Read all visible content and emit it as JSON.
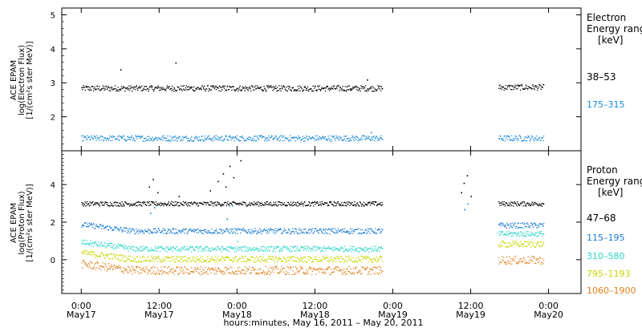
{
  "chart_data": [
    {
      "type": "scatter",
      "panel": "electron",
      "ylabel_lines": [
        "ACE EPAM",
        "log(Electron Flux)",
        "[1/(cm²s ster MeV)]"
      ],
      "ylim": [
        1,
        5.2
      ],
      "yticks": [
        2,
        3,
        4,
        5
      ],
      "yticklabels": [
        "2",
        "3",
        "4",
        "5"
      ],
      "legend_title": [
        "Electron",
        "Energy ranges",
        "[keV]"
      ],
      "data_gaps_hours": [
        [
          46.4,
          64.2
        ],
        [
          94.6,
          100.4
        ]
      ],
      "series": [
        {
          "name": "38–53",
          "color": "#000000",
          "base": 2.85,
          "trend": 0.03,
          "noise": 0.035,
          "points": [
            {
              "x": 6,
              "y": 3.4
            },
            {
              "x": 14.5,
              "y": 3.6
            },
            {
              "x": 44.0,
              "y": 3.1
            }
          ]
        },
        {
          "name": "175–315",
          "color": "#1a8ad6",
          "base": 1.38,
          "trend": 0.0,
          "noise": 0.035,
          "points": [
            {
              "x": 44.6,
              "y": 1.55
            }
          ]
        }
      ]
    },
    {
      "type": "scatter",
      "panel": "proton",
      "ylabel_lines": [
        "ACE EPAM",
        "log(Proton Flux)",
        "[1/(cm²s ster MeV)]"
      ],
      "ylim": [
        -1.8,
        5.8
      ],
      "yticks": [
        0,
        2,
        4
      ],
      "yticklabels": [
        "0",
        "2",
        "4"
      ],
      "legend_title": [
        "Proton",
        "Energy ranges",
        "[keV]"
      ],
      "x_tick_hours": [
        0,
        12,
        24,
        36,
        48,
        60,
        72
      ],
      "xticklabels": [
        "0:00",
        "12:00",
        "0:00",
        "12:00",
        "0:00",
        "12:00",
        "0:00"
      ],
      "date_labels": [
        "May17",
        "May17",
        "May18",
        "May18",
        "May19",
        "May19",
        "May20"
      ],
      "xlim_hours": [
        -3,
        77
      ],
      "xlabel": "hours:minutes, May 16, 2011 – May 20, 2011",
      "series": [
        {
          "name": "47–68",
          "color": "#000000",
          "base": 3.0,
          "trend": 0.0,
          "noise": 0.05,
          "points": [
            {
              "x": 10.4,
              "y": 3.9
            },
            {
              "x": 11,
              "y": 4.3
            },
            {
              "x": 11.7,
              "y": 3.6
            },
            {
              "x": 15,
              "y": 3.4
            },
            {
              "x": 19.8,
              "y": 3.7
            },
            {
              "x": 21,
              "y": 4.2
            },
            {
              "x": 21.8,
              "y": 4.6
            },
            {
              "x": 22.2,
              "y": 3.9
            },
            {
              "x": 22.8,
              "y": 5.0
            },
            {
              "x": 23.4,
              "y": 4.4
            },
            {
              "x": 24.5,
              "y": 5.3
            },
            {
              "x": 58.5,
              "y": 3.6
            },
            {
              "x": 58.9,
              "y": 4.1
            },
            {
              "x": 59.4,
              "y": 4.5
            },
            {
              "x": 60.0,
              "y": 3.4
            }
          ]
        },
        {
          "name": "115–195",
          "color": "#1a7ad0",
          "base": 1.55,
          "trend": 0.3,
          "noise": 0.06,
          "points": [
            {
              "x": 10.6,
              "y": 2.5
            },
            {
              "x": 11.2,
              "y": 2.8
            },
            {
              "x": 22.4,
              "y": 2.2
            },
            {
              "x": 23.2,
              "y": 2.9
            },
            {
              "x": 59.0,
              "y": 2.7
            },
            {
              "x": 59.5,
              "y": 3.0
            }
          ]
        },
        {
          "name": "310–580",
          "color": "#2ad6c8",
          "base": 0.6,
          "trend": 0.8,
          "noise": 0.06,
          "points": [
            {
              "x": 23.3,
              "y": 1.5
            },
            {
              "x": 24.0,
              "y": 1.0
            }
          ]
        },
        {
          "name": "795–1193",
          "color": "#c8d400",
          "base": 0.05,
          "trend": 0.8,
          "noise": 0.07,
          "points": []
        },
        {
          "name": "1060–1900",
          "color": "#e0801a",
          "base": -0.55,
          "trend": 0.55,
          "noise": 0.09,
          "points": []
        }
      ]
    }
  ]
}
